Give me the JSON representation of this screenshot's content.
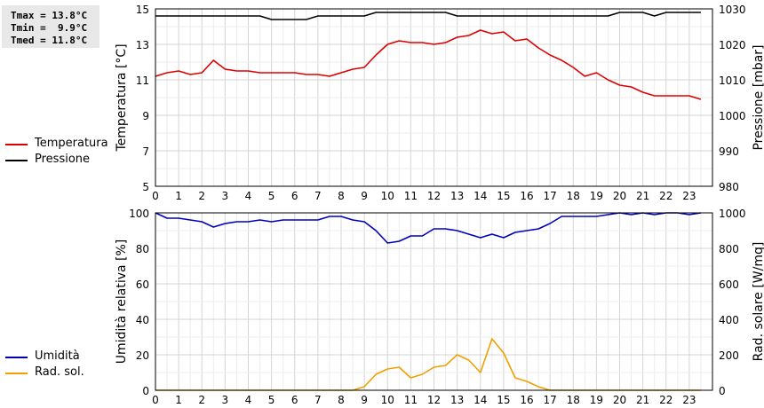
{
  "stats": {
    "tmax": "Tmax = 13.8°C",
    "tmin": "Tmin =  9.9°C",
    "tmed": "Tmed = 11.8°C"
  },
  "legend_top": [
    {
      "label": "Temperatura",
      "color": "#dd0000"
    },
    {
      "label": "Pressione",
      "color": "#000000"
    }
  ],
  "legend_bottom": [
    {
      "label": "Umidità",
      "color": "#0000bb"
    },
    {
      "label": "Rad. sol.",
      "color": "#f0a000"
    }
  ],
  "chart_data": [
    {
      "type": "line",
      "xlim": [
        0,
        24
      ],
      "xticks": [
        "0",
        "1",
        "2",
        "3",
        "4",
        "5",
        "6",
        "7",
        "8",
        "9",
        "10",
        "11",
        "12",
        "13",
        "14",
        "15",
        "16",
        "17",
        "18",
        "19",
        "20",
        "21",
        "22",
        "23"
      ],
      "ylabel": "Temperatura [°C]",
      "ylim": [
        5,
        15
      ],
      "yticks": [
        "5",
        "7",
        "9",
        "11",
        "13",
        "15"
      ],
      "y2label": "Pressione [mbar]",
      "y2lim": [
        980,
        1030
      ],
      "y2ticks": [
        "980",
        "990",
        "1000",
        "1010",
        "1020",
        "1030"
      ],
      "grid": true,
      "series": [
        {
          "name": "Temperatura",
          "axis": "left",
          "color": "#dd0000",
          "x": [
            0,
            0.5,
            1,
            1.5,
            2,
            2.5,
            3,
            3.5,
            4,
            4.5,
            5,
            5.5,
            6,
            6.5,
            7,
            7.5,
            8,
            8.5,
            9,
            9.5,
            10,
            10.5,
            11,
            11.5,
            12,
            12.5,
            13,
            13.5,
            14,
            14.5,
            15,
            15.5,
            16,
            16.5,
            17,
            17.5,
            18,
            18.5,
            19,
            19.5,
            20,
            20.5,
            21,
            21.5,
            22,
            22.5,
            23,
            23.5
          ],
          "values": [
            11.2,
            11.4,
            11.5,
            11.3,
            11.4,
            12.1,
            11.6,
            11.5,
            11.5,
            11.4,
            11.4,
            11.4,
            11.4,
            11.3,
            11.3,
            11.2,
            11.4,
            11.6,
            11.7,
            12.4,
            13.0,
            13.2,
            13.1,
            13.1,
            13.0,
            13.1,
            13.4,
            13.5,
            13.8,
            13.6,
            13.7,
            13.2,
            13.3,
            12.8,
            12.4,
            12.1,
            11.7,
            11.2,
            11.4,
            11.0,
            10.7,
            10.6,
            10.3,
            10.1,
            10.1,
            10.1,
            10.1,
            9.9
          ]
        },
        {
          "name": "Pressione",
          "axis": "right",
          "color": "#000000",
          "x": [
            0,
            0.5,
            1,
            1.5,
            2,
            2.5,
            3,
            3.5,
            4,
            4.5,
            5,
            5.5,
            6,
            6.5,
            7,
            7.5,
            8,
            8.5,
            9,
            9.5,
            10,
            10.5,
            11,
            11.5,
            12,
            12.5,
            13,
            13.5,
            14,
            14.5,
            15,
            15.5,
            16,
            16.5,
            17,
            17.5,
            18,
            18.5,
            19,
            19.5,
            20,
            20.5,
            21,
            21.5,
            22,
            22.5,
            23,
            23.5
          ],
          "values": [
            1028,
            1028,
            1028,
            1028,
            1028,
            1028,
            1028,
            1028,
            1028,
            1028,
            1027,
            1027,
            1027,
            1027,
            1028,
            1028,
            1028,
            1028,
            1028,
            1029,
            1029,
            1029,
            1029,
            1029,
            1029,
            1029,
            1028,
            1028,
            1028,
            1028,
            1028,
            1028,
            1028,
            1028,
            1028,
            1028,
            1028,
            1028,
            1028,
            1028,
            1029,
            1029,
            1029,
            1028,
            1029,
            1029,
            1029,
            1029
          ]
        }
      ]
    },
    {
      "type": "line",
      "xlim": [
        0,
        24
      ],
      "xticks": [
        "0",
        "1",
        "2",
        "3",
        "4",
        "5",
        "6",
        "7",
        "8",
        "9",
        "10",
        "11",
        "12",
        "13",
        "14",
        "15",
        "16",
        "17",
        "18",
        "19",
        "20",
        "21",
        "22",
        "23"
      ],
      "ylabel": "Umidità relativa [%]",
      "ylim": [
        0,
        100
      ],
      "yticks": [
        "0",
        "20",
        "40",
        "60",
        "80",
        "100"
      ],
      "y2label": "Rad. solare [W/mq]",
      "y2lim": [
        0,
        1000
      ],
      "y2ticks": [
        "0",
        "200",
        "400",
        "600",
        "800",
        "1000"
      ],
      "grid": true,
      "series": [
        {
          "name": "Umidità",
          "axis": "left",
          "color": "#0000bb",
          "x": [
            0,
            0.5,
            1,
            1.5,
            2,
            2.5,
            3,
            3.5,
            4,
            4.5,
            5,
            5.5,
            6,
            6.5,
            7,
            7.5,
            8,
            8.5,
            9,
            9.5,
            10,
            10.5,
            11,
            11.5,
            12,
            12.5,
            13,
            13.5,
            14,
            14.5,
            15,
            15.5,
            16,
            16.5,
            17,
            17.5,
            18,
            18.5,
            19,
            19.5,
            20,
            20.5,
            21,
            21.5,
            22,
            22.5,
            23,
            23.5
          ],
          "values": [
            100,
            97,
            97,
            96,
            95,
            92,
            94,
            95,
            95,
            96,
            95,
            96,
            96,
            96,
            96,
            98,
            98,
            96,
            95,
            90,
            83,
            84,
            87,
            87,
            91,
            91,
            90,
            88,
            86,
            88,
            86,
            89,
            90,
            91,
            94,
            98,
            98,
            98,
            98,
            99,
            100,
            99,
            100,
            99,
            100,
            100,
            99,
            100
          ]
        },
        {
          "name": "Rad. sol.",
          "axis": "right",
          "color": "#f0a000",
          "x": [
            0,
            0.5,
            1,
            1.5,
            2,
            2.5,
            3,
            3.5,
            4,
            4.5,
            5,
            5.5,
            6,
            6.5,
            7,
            7.5,
            8,
            8.5,
            9,
            9.5,
            10,
            10.5,
            11,
            11.5,
            12,
            12.5,
            13,
            13.5,
            14,
            14.5,
            15,
            15.5,
            16,
            16.5,
            17,
            17.5,
            18,
            18.5,
            19,
            19.5,
            20,
            20.5,
            21,
            21.5,
            22,
            22.5,
            23,
            23.5
          ],
          "values": [
            0,
            0,
            0,
            0,
            0,
            0,
            0,
            0,
            0,
            0,
            0,
            0,
            0,
            0,
            0,
            0,
            0,
            0,
            20,
            90,
            120,
            130,
            70,
            90,
            130,
            140,
            200,
            170,
            100,
            290,
            210,
            70,
            50,
            20,
            0,
            0,
            0,
            0,
            0,
            0,
            0,
            0,
            0,
            0,
            0,
            0,
            0,
            0
          ]
        }
      ]
    }
  ]
}
